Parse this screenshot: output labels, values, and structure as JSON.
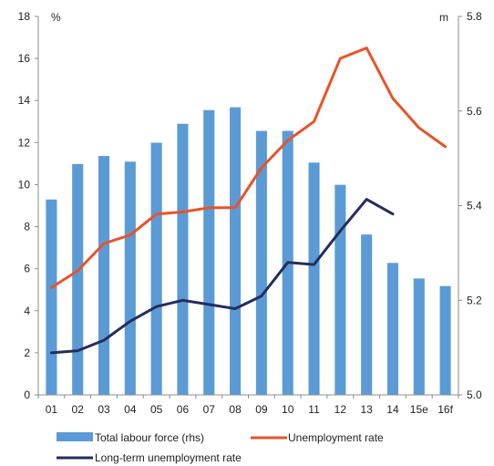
{
  "chart_data": {
    "type": "bar",
    "categories": [
      "01",
      "02",
      "03",
      "04",
      "05",
      "06",
      "07",
      "08",
      "09",
      "10",
      "11",
      "12",
      "13",
      "14",
      "15e",
      "16f"
    ],
    "left_axis": {
      "unit": "%",
      "ylim": [
        0,
        18
      ],
      "ticks": [
        "0",
        "2",
        "4",
        "6",
        "8",
        "10",
        "12",
        "14",
        "16",
        "18"
      ]
    },
    "right_axis": {
      "unit": "m",
      "ylim": [
        5.0,
        5.8
      ],
      "ticks": [
        "5.0",
        "5.2",
        "5.4",
        "5.6",
        "5.8"
      ]
    },
    "grid": false,
    "legend_placement": "bottom",
    "series": [
      {
        "name": "Total labour force (rhs)",
        "type": "bar",
        "axis": "right",
        "color": "#5b9bd5",
        "values": [
          5.413,
          5.488,
          5.505,
          5.493,
          5.533,
          5.573,
          5.602,
          5.608,
          5.558,
          5.558,
          5.491,
          5.444,
          5.339,
          5.279,
          5.246,
          5.23
        ]
      },
      {
        "name": "Unemployment rate",
        "type": "line",
        "axis": "left",
        "color": "#e8532a",
        "values": [
          5.1,
          5.9,
          7.2,
          7.6,
          8.6,
          8.7,
          8.9,
          8.9,
          10.8,
          12.1,
          13.0,
          16.0,
          16.5,
          14.1,
          12.7,
          11.8
        ]
      },
      {
        "name": "Long-term unemployment rate",
        "type": "line",
        "axis": "left",
        "color": "#252d5e",
        "values": [
          2.0,
          2.1,
          2.6,
          3.5,
          4.2,
          4.5,
          4.3,
          4.1,
          4.7,
          6.3,
          6.2,
          7.8,
          9.3,
          8.6,
          null,
          null
        ]
      }
    ]
  }
}
